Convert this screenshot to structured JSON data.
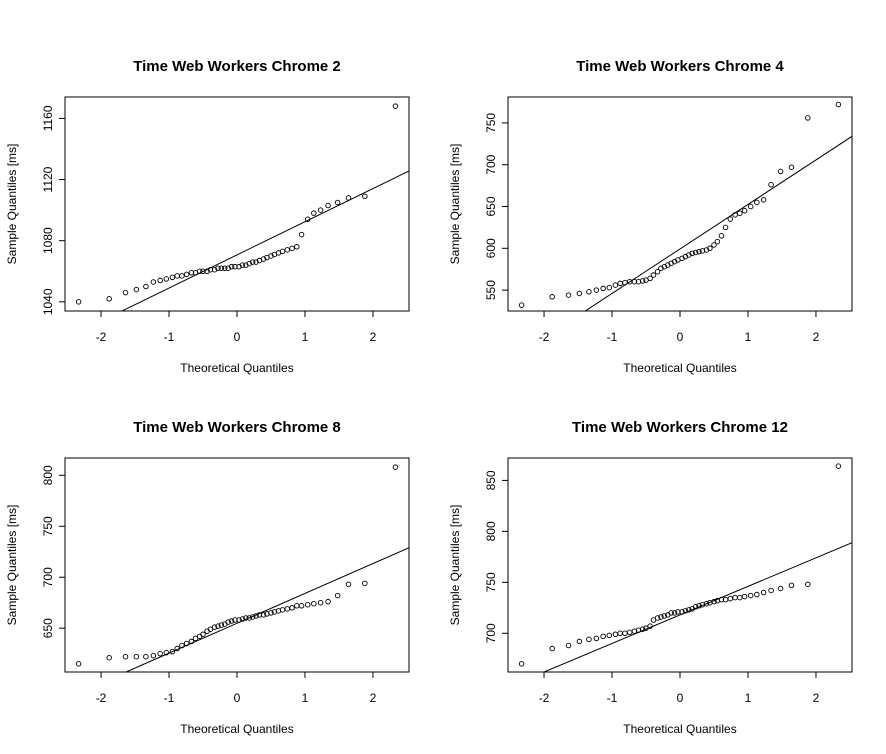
{
  "chart_data": [
    {
      "type": "scatter",
      "title": "Time Web Workers Chrome  2",
      "x_label": "Theoretical Quantiles",
      "y_label": "Sample Quantiles [ms]",
      "x": [
        -2.33,
        -1.88,
        -1.64,
        -1.48,
        -1.34,
        -1.23,
        -1.13,
        -1.04,
        -0.95,
        -0.88,
        -0.81,
        -0.74,
        -0.67,
        -0.61,
        -0.55,
        -0.5,
        -0.44,
        -0.39,
        -0.33,
        -0.28,
        -0.23,
        -0.18,
        -0.13,
        -0.08,
        -0.03,
        0.03,
        0.08,
        0.13,
        0.18,
        0.23,
        0.28,
        0.33,
        0.39,
        0.44,
        0.5,
        0.55,
        0.61,
        0.67,
        0.74,
        0.81,
        0.88,
        0.95,
        1.04,
        1.13,
        1.23,
        1.34,
        1.48,
        1.64,
        1.88,
        2.33
      ],
      "values": [
        1040,
        1042,
        1046,
        1048,
        1050,
        1053,
        1054,
        1055,
        1056,
        1057,
        1057,
        1058,
        1059,
        1059,
        1060,
        1060,
        1060,
        1061,
        1061,
        1062,
        1062,
        1062,
        1062,
        1063,
        1063,
        1063,
        1064,
        1064,
        1065,
        1066,
        1066,
        1067,
        1068,
        1069,
        1070,
        1071,
        1072,
        1073,
        1074,
        1075,
        1076,
        1084,
        1094,
        1098,
        1100,
        1103,
        1105,
        1108,
        1109,
        1168
      ],
      "reference_line": {
        "slope": 21.7,
        "intercept": 1070.7
      },
      "xlim": [
        -2.53,
        2.53
      ],
      "xticks": [
        -2,
        -1,
        0,
        1,
        2
      ],
      "ylim": [
        1034,
        1174
      ],
      "yticks": [
        1040,
        1080,
        1120,
        1160
      ],
      "color": "#000000"
    },
    {
      "type": "scatter",
      "title": "Time Web Workers Chrome  4",
      "x_label": "Theoretical Quantiles",
      "y_label": "Sample Quantiles [ms]",
      "x": [
        -2.33,
        -1.88,
        -1.64,
        -1.48,
        -1.34,
        -1.23,
        -1.13,
        -1.04,
        -0.95,
        -0.88,
        -0.81,
        -0.74,
        -0.67,
        -0.61,
        -0.55,
        -0.5,
        -0.44,
        -0.39,
        -0.33,
        -0.28,
        -0.23,
        -0.18,
        -0.13,
        -0.08,
        -0.03,
        0.03,
        0.08,
        0.13,
        0.18,
        0.23,
        0.28,
        0.33,
        0.39,
        0.44,
        0.5,
        0.55,
        0.61,
        0.67,
        0.74,
        0.81,
        0.88,
        0.95,
        1.04,
        1.13,
        1.23,
        1.34,
        1.48,
        1.64,
        1.88,
        2.33
      ],
      "values": [
        532,
        542,
        544,
        546,
        548,
        550,
        552,
        553,
        556,
        558,
        559,
        560,
        560,
        560,
        561,
        562,
        564,
        568,
        572,
        576,
        578,
        580,
        582,
        584,
        586,
        588,
        590,
        592,
        594,
        595,
        596,
        597,
        598,
        600,
        604,
        608,
        615,
        625,
        635,
        640,
        642,
        645,
        650,
        655,
        658,
        676,
        692,
        697,
        756,
        772
      ],
      "reference_line": {
        "slope": 53.25,
        "intercept": 599.2
      },
      "xlim": [
        -2.53,
        2.53
      ],
      "xticks": [
        -2,
        -1,
        0,
        1,
        2
      ],
      "ylim": [
        525,
        781
      ],
      "yticks": [
        550,
        600,
        650,
        700,
        750
      ],
      "color": "#000000"
    },
    {
      "type": "scatter",
      "title": "Time Web Workers Chrome  8",
      "x_label": "Theoretical Quantiles",
      "y_label": "Sample Quantiles [ms]",
      "x": [
        -2.33,
        -1.88,
        -1.64,
        -1.48,
        -1.34,
        -1.23,
        -1.13,
        -1.04,
        -0.95,
        -0.88,
        -0.81,
        -0.74,
        -0.67,
        -0.61,
        -0.55,
        -0.5,
        -0.44,
        -0.39,
        -0.33,
        -0.28,
        -0.23,
        -0.18,
        -0.13,
        -0.08,
        -0.03,
        0.03,
        0.08,
        0.13,
        0.18,
        0.23,
        0.28,
        0.33,
        0.39,
        0.44,
        0.5,
        0.55,
        0.61,
        0.67,
        0.74,
        0.81,
        0.88,
        0.95,
        1.04,
        1.13,
        1.23,
        1.34,
        1.48,
        1.64,
        1.88,
        2.33
      ],
      "values": [
        615,
        621,
        622,
        622,
        622,
        623,
        625,
        626,
        627,
        630,
        633,
        635,
        637,
        640,
        642,
        644,
        647,
        649,
        651,
        652,
        653,
        654,
        656,
        657,
        658,
        658,
        659,
        660,
        660,
        661,
        662,
        663,
        663,
        664,
        665,
        666,
        667,
        668,
        669,
        670,
        672,
        672,
        673,
        674,
        675,
        676,
        682,
        693,
        694,
        808
      ],
      "reference_line": {
        "slope": 29.3,
        "intercept": 654.8
      },
      "xlim": [
        -2.53,
        2.53
      ],
      "xticks": [
        -2,
        -1,
        0,
        1,
        2
      ],
      "ylim": [
        607,
        817
      ],
      "yticks": [
        650,
        700,
        750,
        800
      ],
      "color": "#000000"
    },
    {
      "type": "scatter",
      "title": "Time Web Workers Chrome  12",
      "x_label": "Theoretical Quantiles",
      "y_label": "Sample Quantiles [ms]",
      "x": [
        -2.33,
        -1.88,
        -1.64,
        -1.48,
        -1.34,
        -1.23,
        -1.13,
        -1.04,
        -0.95,
        -0.88,
        -0.81,
        -0.74,
        -0.67,
        -0.61,
        -0.55,
        -0.5,
        -0.44,
        -0.39,
        -0.33,
        -0.28,
        -0.23,
        -0.18,
        -0.13,
        -0.08,
        -0.03,
        0.03,
        0.08,
        0.13,
        0.18,
        0.23,
        0.28,
        0.33,
        0.39,
        0.44,
        0.5,
        0.55,
        0.61,
        0.67,
        0.74,
        0.81,
        0.88,
        0.95,
        1.04,
        1.13,
        1.23,
        1.34,
        1.48,
        1.64,
        1.88,
        2.33
      ],
      "values": [
        670,
        685,
        688,
        692,
        694,
        695,
        697,
        698,
        699,
        700,
        700,
        701,
        702,
        703,
        704,
        705,
        707,
        713,
        715,
        716,
        717,
        718,
        720,
        720,
        721,
        721,
        722,
        723,
        724,
        726,
        727,
        728,
        729,
        730,
        731,
        732,
        733,
        733,
        734,
        735,
        735,
        736,
        737,
        738,
        740,
        742,
        744,
        747,
        748,
        864
      ],
      "reference_line": {
        "slope": 28,
        "intercept": 718
      },
      "xlim": [
        -2.53,
        2.53
      ],
      "xticks": [
        -2,
        -1,
        0,
        1,
        2
      ],
      "ylim": [
        662,
        872
      ],
      "yticks": [
        700,
        750,
        800,
        850
      ],
      "color": "#000000"
    }
  ]
}
